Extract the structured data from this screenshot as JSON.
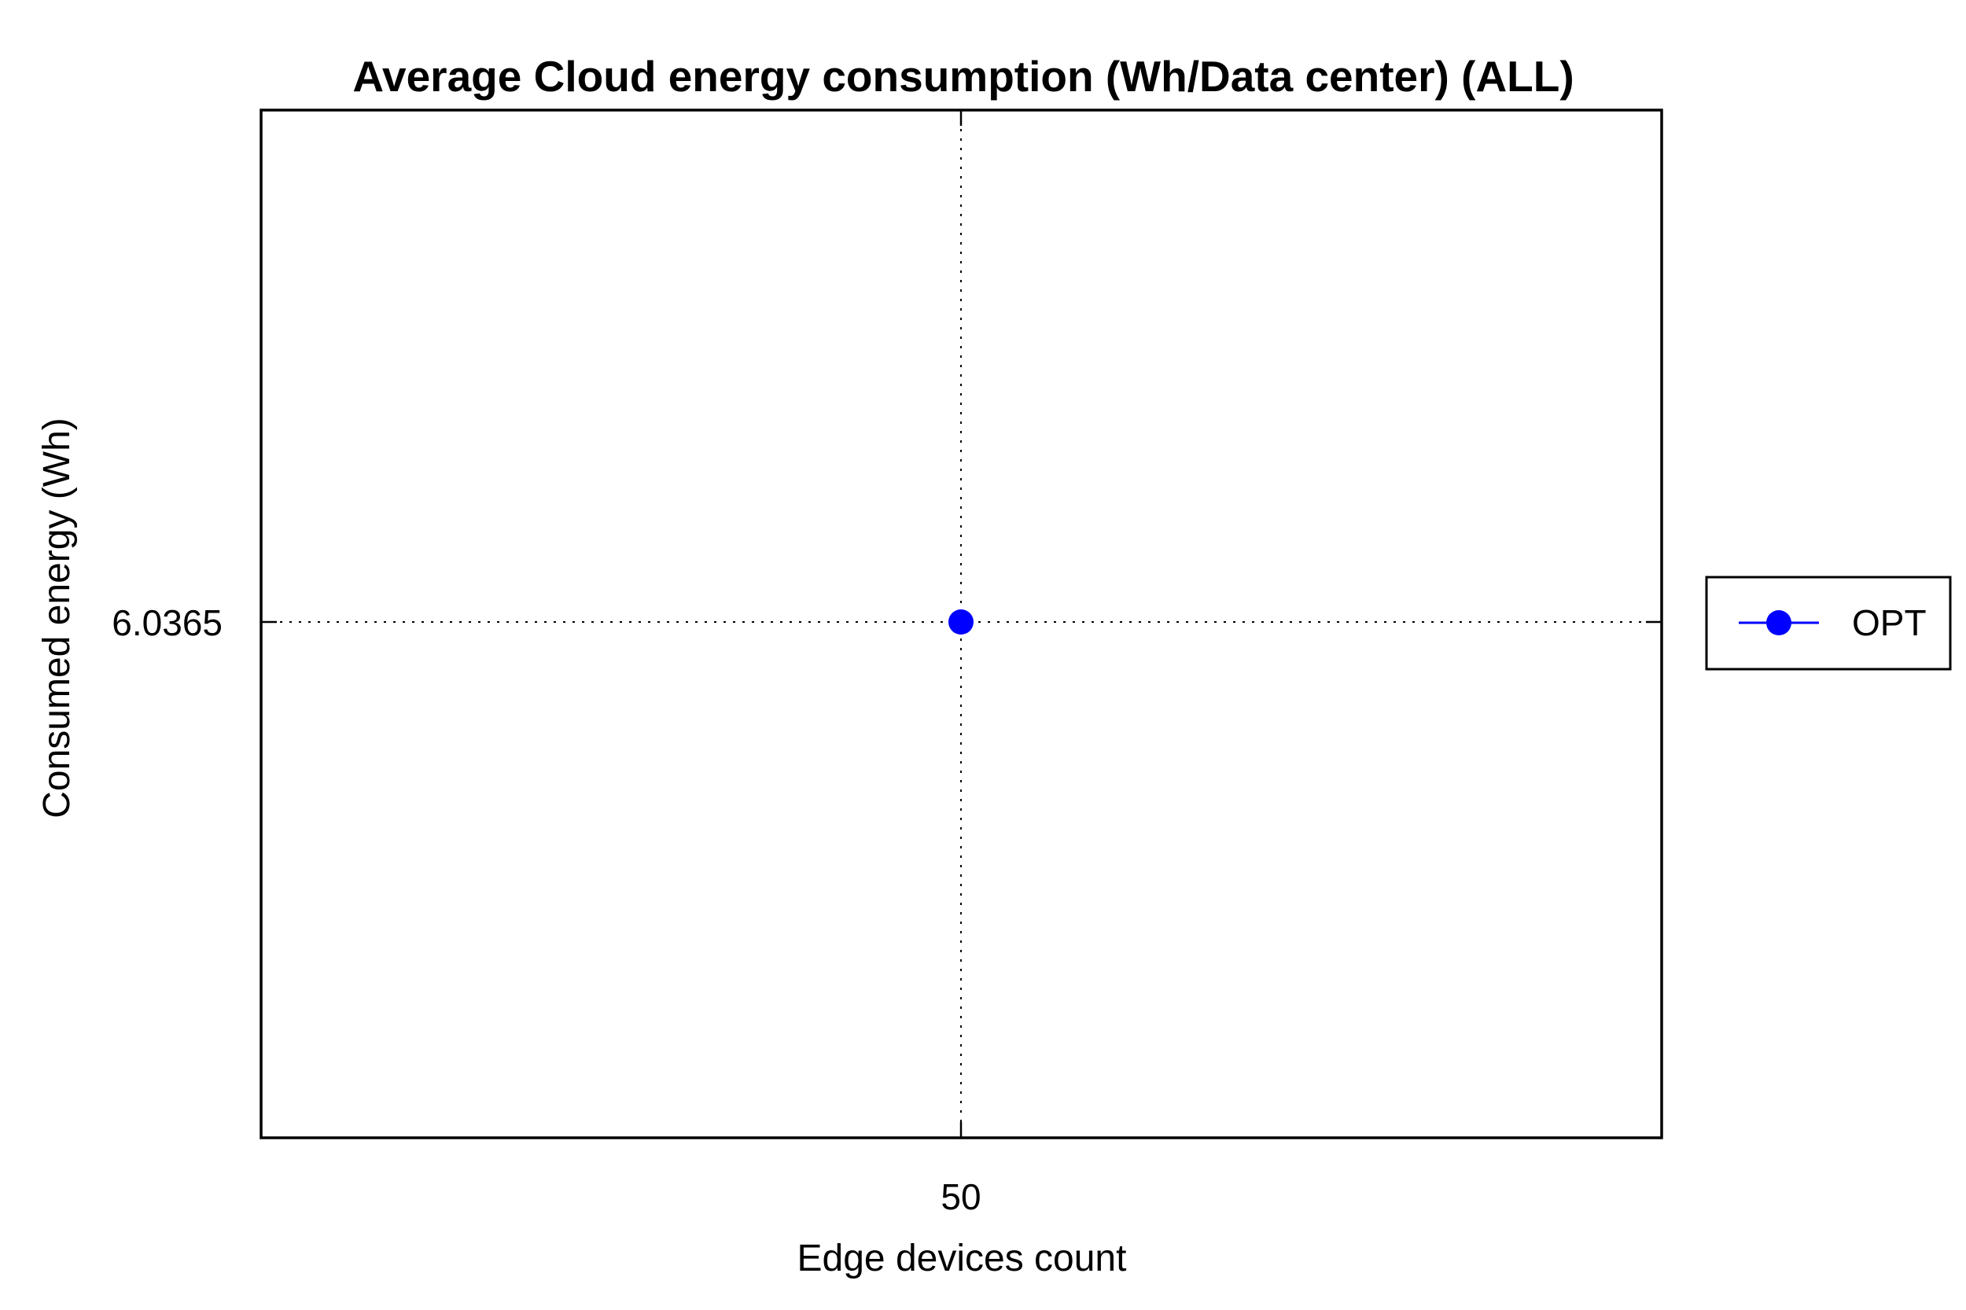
{
  "chart_data": {
    "type": "line",
    "title": "Average Cloud energy consumption (Wh/Data center) (ALL)",
    "xlabel": "Edge devices count",
    "ylabel": "Consumed energy (Wh)",
    "x_ticks": [
      "50"
    ],
    "y_ticks": [
      "6.0365"
    ],
    "x": [
      50
    ],
    "series": [
      {
        "name": "OPT",
        "values": [
          6.0365
        ],
        "color": "#0000ff",
        "marker": "circle"
      }
    ],
    "grid": true,
    "grid_style": "dotted",
    "legend_position": "right"
  }
}
